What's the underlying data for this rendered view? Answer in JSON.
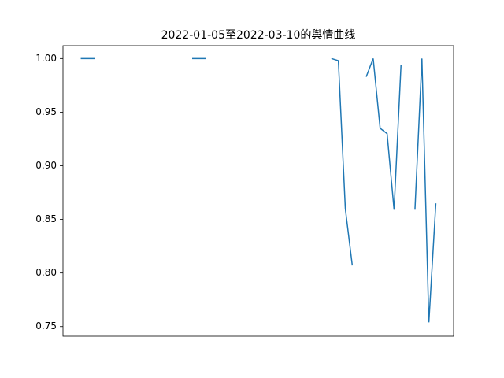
{
  "chart_data": {
    "type": "line",
    "title": "2022-01-05至2022-03-10的舆情曲线",
    "series": [
      {
        "color": "#1f77b4",
        "values": [
          1.0,
          1.0,
          1.0,
          null,
          null,
          null,
          null,
          null,
          null,
          null,
          null,
          null,
          null,
          null,
          null,
          null,
          1.0,
          1.0,
          1.0,
          null,
          null,
          null,
          null,
          null,
          null,
          null,
          null,
          null,
          null,
          null,
          null,
          null,
          null,
          null,
          null,
          null,
          1.0,
          0.998,
          0.86,
          0.807,
          null,
          0.983,
          1.0,
          0.935,
          0.93,
          0.859,
          0.994,
          null,
          0.859,
          1.0,
          0.754,
          0.865
        ]
      }
    ],
    "ylim": [
      0.741,
      1.012
    ],
    "yticks": [
      0.75,
      {
        "value": 0.8,
        "label": "0.80"
      },
      0.85,
      {
        "value": 0.9,
        "label": "0.90"
      },
      0.95,
      {
        "value": 1.0,
        "label": "1.00"
      }
    ],
    "grid": false
  }
}
